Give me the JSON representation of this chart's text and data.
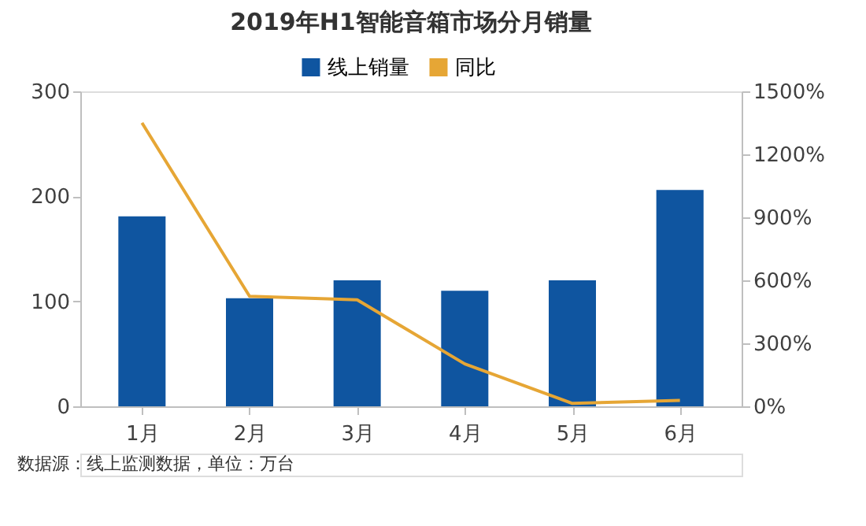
{
  "chart_data": {
    "type": "bar",
    "title": "2019年H1智能音箱市场分月销量",
    "categories": [
      "1月",
      "2月",
      "3月",
      "4月",
      "5月",
      "6月"
    ],
    "series": [
      {
        "name": "线上销量",
        "color": "#0f55a0",
        "values": [
          181,
          103,
          120,
          110,
          120,
          206
        ]
      },
      {
        "name": "同比",
        "type": "line",
        "axis": "y2",
        "color": "#e6a635",
        "values": [
          1350,
          524,
          507,
          202,
          14,
          28
        ]
      }
    ],
    "ylim": [
      0,
      300
    ],
    "yticks": [
      0,
      100,
      200,
      300
    ],
    "y2lim": [
      0,
      1500
    ],
    "y2ticks": [
      {
        "value": 0,
        "label": "0%"
      },
      {
        "value": 300,
        "label": "300%"
      },
      {
        "value": 600,
        "label": "600%"
      },
      {
        "value": 900,
        "label": "900%"
      },
      {
        "value": 1200,
        "label": "1200%"
      },
      {
        "value": 1500,
        "label": "1500%"
      }
    ],
    "grid": false,
    "legend": "top",
    "marker": "none",
    "line_style": "solid",
    "annotations": [
      "数据源：线上监测数据，单位：万台"
    ]
  }
}
